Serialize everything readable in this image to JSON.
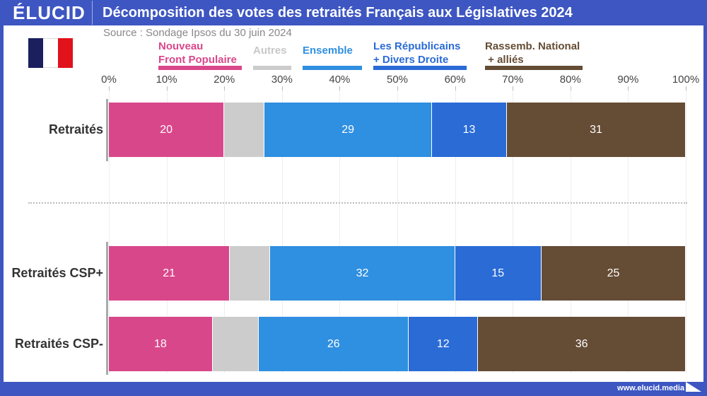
{
  "header": {
    "logo": "ÉLUCID",
    "title": "Décomposition des votes des retraités Français aux Législatives 2024"
  },
  "source": "Source : Sondage Ipsos du 30 juin 2024",
  "footer": {
    "url": "www.elucid.media"
  },
  "chart_data": {
    "type": "bar",
    "orientation": "horizontal",
    "stacked": true,
    "xlim": [
      0,
      100
    ],
    "x_ticks": [
      "0%",
      "10%",
      "20%",
      "30%",
      "40%",
      "50%",
      "60%",
      "70%",
      "80%",
      "90%",
      "100%"
    ],
    "categories": [
      "Retraités",
      "Retraités CSP+",
      "Retraités CSP-"
    ],
    "series": [
      {
        "name": "Nouveau Front Populaire",
        "legend": [
          "Nouveau",
          "Front Populaire"
        ],
        "color": "#d9478b",
        "values": [
          20,
          21,
          18
        ],
        "labels": [
          "20",
          "21",
          "18"
        ]
      },
      {
        "name": "Autres",
        "legend": [
          "Autres"
        ],
        "color": "#cccccc",
        "values": [
          7,
          7,
          8
        ],
        "labels": [
          "",
          "",
          ""
        ]
      },
      {
        "name": "Ensemble",
        "legend": [
          "Ensemble"
        ],
        "color": "#2f8fe0",
        "values": [
          29,
          32,
          26
        ],
        "labels": [
          "29",
          "32",
          "26"
        ]
      },
      {
        "name": "Les Républicains + Divers Droite",
        "legend": [
          "Les Républicains",
          "+ Divers Droite"
        ],
        "color": "#2a6bd6",
        "values": [
          13,
          15,
          12
        ],
        "labels": [
          "13",
          "15",
          "12"
        ]
      },
      {
        "name": "Rassemb. National + alliés",
        "legend": [
          "Rassemb. National",
          " + alliés"
        ],
        "color": "#654c35",
        "values": [
          31,
          25,
          36
        ],
        "labels": [
          "31",
          "25",
          "36"
        ]
      }
    ],
    "legend_placement": "top",
    "grid": true
  }
}
